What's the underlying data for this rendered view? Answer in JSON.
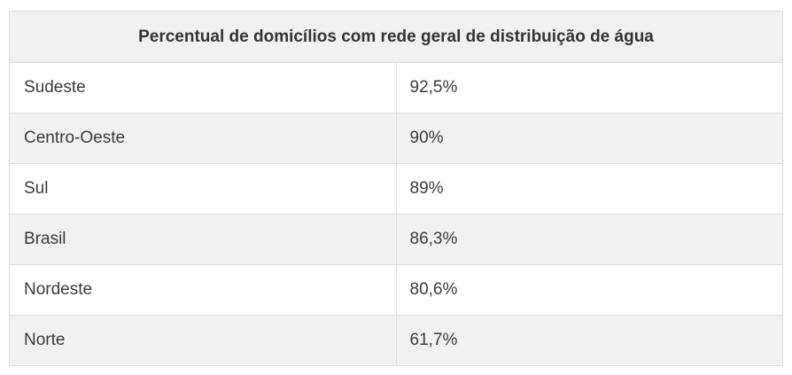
{
  "chart_data": {
    "type": "table",
    "title": "Percentual de domicílios com rede geral de distribuição de água",
    "rows": [
      {
        "region": "Sudeste",
        "value_text": "92,5%",
        "value": 92.5
      },
      {
        "region": "Centro-Oeste",
        "value_text": "90%",
        "value": 90
      },
      {
        "region": "Sul",
        "value_text": "89%",
        "value": 89
      },
      {
        "region": "Brasil",
        "value_text": "86,3%",
        "value": 86.3
      },
      {
        "region": "Nordeste",
        "value_text": "80,6%",
        "value": 80.6
      },
      {
        "region": "Norte",
        "value_text": "61,7%",
        "value": 61.7
      }
    ]
  },
  "colors": {
    "header_bg": "#f1f1f1",
    "stripe_bg": "#f1f1f1",
    "row_bg": "#ffffff",
    "border": "#dcdcdc",
    "text": "#333333"
  }
}
